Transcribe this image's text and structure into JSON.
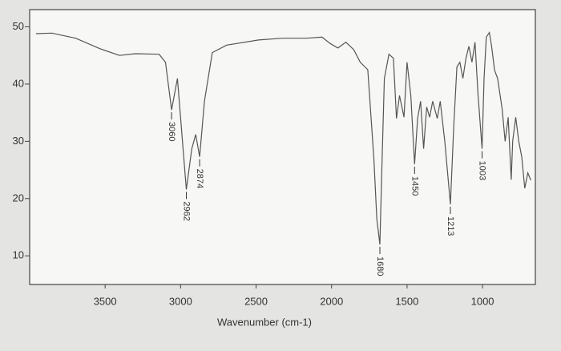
{
  "chart_data": {
    "type": "line",
    "xlabel": "Wavenumber (cm-1)",
    "x": [
      3958,
      3853,
      3695,
      3537,
      3405,
      3300,
      3142,
      3100,
      3060,
      3021,
      3000,
      2962,
      2926,
      2900,
      2874,
      2842,
      2790,
      2695,
      2484,
      2326,
      2168,
      2063,
      2010,
      1958,
      1905,
      1853,
      1810,
      1760,
      1720,
      1700,
      1680,
      1665,
      1650,
      1620,
      1590,
      1570,
      1550,
      1520,
      1500,
      1475,
      1450,
      1430,
      1410,
      1390,
      1370,
      1350,
      1330,
      1300,
      1280,
      1250,
      1213,
      1190,
      1170,
      1150,
      1130,
      1110,
      1090,
      1070,
      1050,
      1030,
      1003,
      990,
      975,
      955,
      940,
      920,
      900,
      870,
      850,
      830,
      810,
      800,
      780,
      760,
      740,
      720,
      700,
      680
    ],
    "series": [
      {
        "color": "#555555",
        "values": [
          48.8,
          48.9,
          48,
          46.2,
          45,
          45.3,
          45.2,
          43.8,
          35.5,
          41,
          34,
          21.6,
          28.7,
          31.2,
          27.3,
          37,
          45.5,
          46.8,
          47.7,
          48,
          48,
          48.2,
          47.1,
          46.3,
          47.3,
          46,
          43.8,
          42.5,
          27,
          16.4,
          12,
          27,
          41,
          45.2,
          44.5,
          34,
          38,
          34.2,
          43.8,
          38,
          26,
          34,
          37,
          28.7,
          36,
          34.2,
          37,
          34,
          37,
          30,
          19,
          33,
          43,
          43.8,
          41,
          44.5,
          46.6,
          43.8,
          47.3,
          38.3,
          28.7,
          41,
          48.2,
          49,
          46.6,
          42.4,
          41,
          35.6,
          30,
          34.2,
          23.3,
          30,
          34.2,
          30,
          27.3,
          21.8,
          24.5,
          23.2
        ]
      }
    ],
    "peak_labels": [
      3060,
      2962,
      2874,
      1680,
      1450,
      1213,
      1003
    ],
    "xlim": [
      4000,
      650
    ],
    "xticks": [
      3500,
      3000,
      2500,
      2000,
      1500,
      1000
    ],
    "ylim": [
      5,
      53
    ],
    "yticks": [
      10,
      20,
      30,
      40,
      50
    ]
  }
}
